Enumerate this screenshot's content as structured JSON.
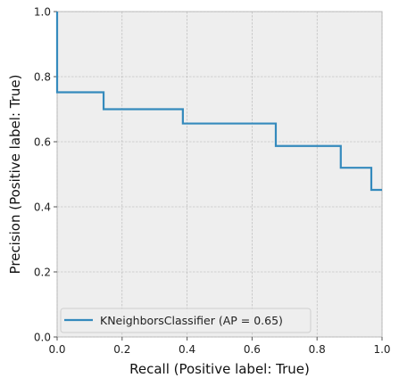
{
  "chart_data": {
    "type": "line",
    "title": "",
    "xlabel": "Recall (Positive label: True)",
    "ylabel": "Precision (Positive label: True)",
    "xlim": [
      0,
      1
    ],
    "ylim": [
      0,
      1
    ],
    "xticks": [
      "0.0",
      "0.2",
      "0.4",
      "0.6",
      "0.8",
      "1.0"
    ],
    "yticks": [
      "0.0",
      "0.2",
      "0.4",
      "0.6",
      "0.8",
      "1.0"
    ],
    "grid": true,
    "drawstyle": "steps-post",
    "legend_position": "lower-left",
    "series": [
      {
        "name": "KNeighborsClassifier (AP = 0.65)",
        "color": "#348ABD",
        "x": [
          0.0,
          0.0,
          0.143,
          0.387,
          0.673,
          0.873,
          0.967,
          1.0
        ],
        "y": [
          1.0,
          0.752,
          0.7,
          0.656,
          0.587,
          0.52,
          0.452,
          0.452
        ]
      }
    ]
  }
}
